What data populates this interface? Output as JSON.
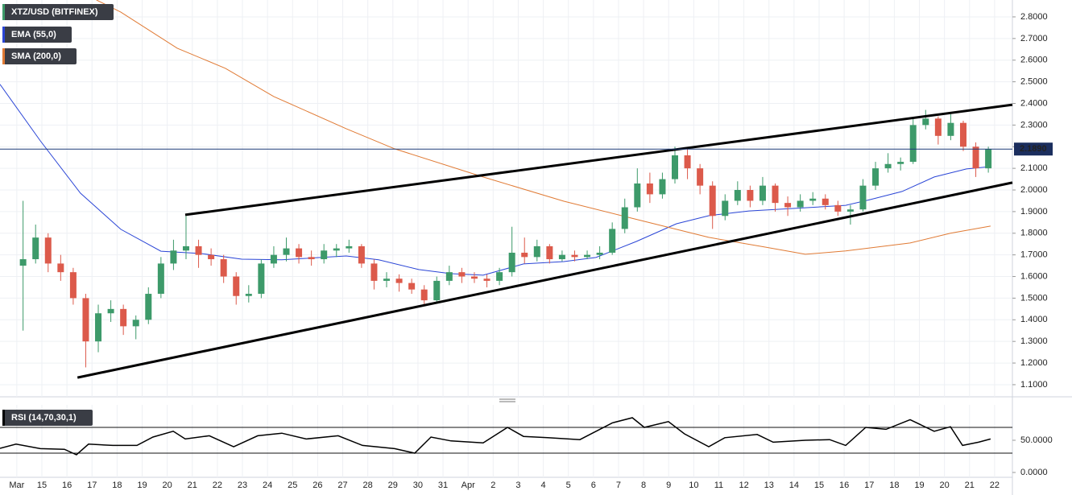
{
  "chart_data": {
    "type": "candlestick",
    "title": "XTZ/USD (BITFINEX)",
    "up_color": "#3d9a6a",
    "down_color": "#dc5a4b",
    "grid": true,
    "x": [
      14.25,
      14.75,
      15.25,
      15.75,
      16.25,
      16.75,
      17.25,
      17.75,
      18.25,
      18.75,
      19.25,
      19.75,
      20.25,
      20.75,
      21.25,
      21.75,
      22.25,
      22.75,
      23.25,
      23.75,
      24.25,
      24.75,
      25.25,
      25.75,
      26.25,
      26.75,
      27.25,
      27.75,
      28.25,
      28.75,
      29.25,
      29.75,
      30.25,
      30.75,
      31.25,
      31.75,
      32.25,
      32.75,
      33.25,
      33.75,
      34.25,
      34.75,
      35.25,
      35.75,
      36.25,
      36.75,
      37.25,
      37.75,
      38.25,
      38.75,
      39.25,
      39.75,
      40.25,
      40.75,
      41.25,
      41.75,
      42.25,
      42.75,
      43.25,
      43.75,
      44.25,
      44.75,
      45.25,
      45.75,
      46.25,
      46.75,
      47.25,
      47.75,
      48.25,
      48.75,
      49.25,
      49.75,
      50.25,
      50.75,
      51.25,
      51.75,
      52.25,
      52.75
    ],
    "open": [
      1.65,
      1.68,
      1.78,
      1.66,
      1.62,
      1.5,
      1.3,
      1.43,
      1.45,
      1.37,
      1.4,
      1.52,
      1.66,
      1.72,
      1.74,
      1.7,
      1.68,
      1.6,
      1.51,
      1.52,
      1.66,
      1.7,
      1.73,
      1.69,
      1.68,
      1.72,
      1.73,
      1.74,
      1.66,
      1.58,
      1.59,
      1.57,
      1.54,
      1.49,
      1.58,
      1.62,
      1.6,
      1.59,
      1.58,
      1.62,
      1.71,
      1.69,
      1.74,
      1.68,
      1.7,
      1.69,
      1.7,
      1.71,
      1.82,
      1.92,
      2.03,
      1.98,
      2.05,
      2.16,
      2.1,
      2.02,
      1.88,
      1.95,
      2.0,
      1.95,
      2.02,
      1.94,
      1.92,
      1.95,
      1.96,
      1.93,
      1.9,
      1.91,
      2.02,
      2.1,
      2.12,
      2.13,
      2.3,
      2.33,
      2.25,
      2.31,
      2.2,
      2.1
    ],
    "high": [
      1.95,
      1.84,
      1.8,
      1.7,
      1.64,
      1.52,
      1.47,
      1.49,
      1.47,
      1.42,
      1.55,
      1.69,
      1.77,
      1.88,
      1.77,
      1.73,
      1.7,
      1.62,
      1.56,
      1.68,
      1.74,
      1.78,
      1.75,
      1.72,
      1.75,
      1.75,
      1.77,
      1.75,
      1.68,
      1.62,
      1.61,
      1.59,
      1.56,
      1.6,
      1.65,
      1.64,
      1.62,
      1.61,
      1.64,
      1.83,
      1.78,
      1.77,
      1.75,
      1.72,
      1.72,
      1.72,
      1.74,
      1.85,
      1.96,
      2.1,
      2.08,
      2.08,
      2.2,
      2.19,
      2.12,
      2.04,
      1.98,
      2.04,
      2.02,
      2.06,
      2.03,
      1.97,
      1.98,
      1.99,
      1.98,
      1.95,
      1.93,
      2.05,
      2.13,
      2.17,
      2.15,
      2.33,
      2.37,
      2.34,
      2.35,
      2.32,
      2.22,
      2.2
    ],
    "low": [
      1.35,
      1.66,
      1.62,
      1.58,
      1.47,
      1.18,
      1.25,
      1.39,
      1.33,
      1.31,
      1.38,
      1.5,
      1.63,
      1.68,
      1.64,
      1.65,
      1.57,
      1.47,
      1.48,
      1.5,
      1.64,
      1.67,
      1.66,
      1.65,
      1.66,
      1.69,
      1.71,
      1.64,
      1.54,
      1.55,
      1.53,
      1.52,
      1.47,
      1.48,
      1.56,
      1.57,
      1.57,
      1.55,
      1.56,
      1.6,
      1.66,
      1.67,
      1.66,
      1.67,
      1.67,
      1.68,
      1.68,
      1.7,
      1.8,
      1.9,
      1.94,
      1.96,
      2.03,
      2.05,
      1.98,
      1.82,
      1.86,
      1.93,
      1.92,
      1.93,
      1.9,
      1.88,
      1.9,
      1.93,
      1.91,
      1.88,
      1.84,
      1.9,
      2.0,
      2.08,
      2.09,
      2.12,
      2.28,
      2.21,
      2.23,
      2.18,
      2.06,
      2.08
    ],
    "close": [
      1.68,
      1.78,
      1.66,
      1.62,
      1.5,
      1.3,
      1.43,
      1.45,
      1.37,
      1.4,
      1.52,
      1.66,
      1.72,
      1.74,
      1.7,
      1.68,
      1.6,
      1.51,
      1.52,
      1.66,
      1.7,
      1.73,
      1.69,
      1.68,
      1.72,
      1.73,
      1.74,
      1.66,
      1.58,
      1.59,
      1.57,
      1.54,
      1.49,
      1.58,
      1.62,
      1.6,
      1.59,
      1.58,
      1.62,
      1.71,
      1.69,
      1.74,
      1.68,
      1.7,
      1.69,
      1.7,
      1.71,
      1.82,
      1.92,
      2.03,
      1.98,
      2.05,
      2.16,
      2.1,
      2.02,
      1.88,
      1.95,
      2.0,
      1.95,
      2.02,
      1.94,
      1.92,
      1.95,
      1.96,
      1.93,
      1.9,
      1.91,
      2.02,
      2.1,
      2.12,
      2.13,
      2.3,
      2.33,
      2.25,
      2.31,
      2.2,
      2.1,
      2.189
    ],
    "lines": [
      {
        "name": "EMA (55,0)",
        "color": "#2a45d6",
        "x": [
          13.33,
          14.94,
          16.54,
          18.15,
          19.75,
          21.36,
          22.97,
          24.57,
          27.14,
          28.43,
          30.03,
          31.32,
          32.6,
          34.21,
          35.82,
          37.1,
          38.71,
          40.31,
          41.6,
          43.2,
          45.45,
          47.06,
          48.02,
          49.31,
          50.59,
          51.88,
          52.84
        ],
        "values": [
          2.488,
          2.227,
          1.985,
          1.818,
          1.717,
          1.706,
          1.68,
          1.677,
          1.695,
          1.677,
          1.632,
          1.613,
          1.606,
          1.658,
          1.669,
          1.688,
          1.762,
          1.844,
          1.881,
          1.903,
          1.918,
          1.929,
          1.955,
          1.993,
          2.06,
          2.097,
          2.108
        ]
      },
      {
        "name": "SMA (200,0)",
        "color": "#e07a34",
        "x": [
          17.18,
          18.15,
          20.4,
          22.32,
          24.25,
          27.14,
          29.07,
          32.6,
          35.82,
          39.03,
          41.6,
          43.85,
          45.45,
          47.06,
          49.63,
          51.24,
          52.84
        ],
        "values": [
          2.878,
          2.822,
          2.655,
          2.562,
          2.432,
          2.283,
          2.19,
          2.06,
          1.948,
          1.855,
          1.781,
          1.736,
          1.703,
          1.718,
          1.755,
          1.8,
          1.833
        ]
      }
    ],
    "trendlines": [
      {
        "x": [
          16.42,
          53.71
        ],
        "y": [
          1.133,
          2.034
        ]
      },
      {
        "x": [
          20.72,
          53.71
        ],
        "y": [
          1.885,
          2.394
        ]
      }
    ],
    "last_price": {
      "value": 2.189,
      "label": "2.1890"
    },
    "xlim": [
      13.33,
      53.71
    ],
    "ylim": [
      1.044,
      2.878
    ],
    "yticks": [
      {
        "value": 1.1,
        "label": "1.1000"
      },
      {
        "value": 1.2,
        "label": "1.2000"
      },
      {
        "value": 1.3,
        "label": "1.3000"
      },
      {
        "value": 1.4,
        "label": "1.4000"
      },
      {
        "value": 1.5,
        "label": "1.5000"
      },
      {
        "value": 1.6,
        "label": "1.6000"
      },
      {
        "value": 1.7,
        "label": "1.7000"
      },
      {
        "value": 1.8,
        "label": "1.8000"
      },
      {
        "value": 1.9,
        "label": "1.9000"
      },
      {
        "value": 2.0,
        "label": "2.0000"
      },
      {
        "value": 2.1,
        "label": "2.1000"
      },
      {
        "value": 2.2,
        "label": "2.2000"
      },
      {
        "value": 2.3,
        "label": "2.3000"
      },
      {
        "value": 2.4,
        "label": "2.4000"
      },
      {
        "value": 2.5,
        "label": "2.5000"
      },
      {
        "value": 2.6,
        "label": "2.6000"
      },
      {
        "value": 2.7,
        "label": "2.7000"
      },
      {
        "value": 2.8,
        "label": "2.8000"
      }
    ],
    "xticks": [
      {
        "value": 14,
        "label": "Mar"
      },
      15,
      16,
      17,
      18,
      19,
      20,
      21,
      22,
      23,
      24,
      25,
      26,
      27,
      28,
      29,
      30,
      31,
      {
        "value": 32,
        "label": "Apr"
      },
      {
        "value": 33,
        "label": "2"
      },
      {
        "value": 34,
        "label": "3"
      },
      {
        "value": 35,
        "label": "4"
      },
      {
        "value": 36,
        "label": "5"
      },
      {
        "value": 37,
        "label": "6"
      },
      {
        "value": 38,
        "label": "7"
      },
      {
        "value": 39,
        "label": "8"
      },
      {
        "value": 40,
        "label": "9"
      },
      {
        "value": 41,
        "label": "10"
      },
      {
        "value": 42,
        "label": "11"
      },
      {
        "value": 43,
        "label": "12"
      },
      {
        "value": 44,
        "label": "13"
      },
      {
        "value": 45,
        "label": "14"
      },
      {
        "value": 46,
        "label": "15"
      },
      {
        "value": 47,
        "label": "16"
      },
      {
        "value": 48,
        "label": "17"
      },
      {
        "value": 49,
        "label": "18"
      },
      {
        "value": 50,
        "label": "19"
      },
      {
        "value": 51,
        "label": "20"
      },
      {
        "value": 52,
        "label": "21"
      },
      {
        "value": 53,
        "label": "22"
      }
    ],
    "rsi": {
      "name": "RSI (14,70,30,1)",
      "color": "#000000",
      "x": [
        13.33,
        13.97,
        14.94,
        15.9,
        16.38,
        16.86,
        17.83,
        18.79,
        19.43,
        20.24,
        20.72,
        21.68,
        22.65,
        23.61,
        24.57,
        25.54,
        26.82,
        27.79,
        29.07,
        29.87,
        30.52,
        31.32,
        32.6,
        33.57,
        34.21,
        35.17,
        36.46,
        37.75,
        38.55,
        39.03,
        39.99,
        40.63,
        41.6,
        42.24,
        43.53,
        44.17,
        45.45,
        46.42,
        47.06,
        47.86,
        48.67,
        49.63,
        50.59,
        51.24,
        51.72,
        52.36,
        52.84
      ],
      "values": [
        37.5,
        44,
        37,
        36,
        27.5,
        44,
        42,
        42,
        55,
        64,
        52,
        57,
        40,
        57,
        61,
        52,
        57,
        42,
        37,
        30,
        55,
        49,
        46,
        70,
        56,
        54,
        51,
        77,
        85,
        70,
        79,
        60,
        40,
        54,
        59,
        47,
        50,
        51,
        42,
        70,
        67,
        82,
        64,
        71,
        42,
        47,
        52
      ],
      "ylim": [
        -7.5,
        105
      ],
      "yticks": [
        {
          "value": 0,
          "label": "0.0000"
        },
        {
          "value": 50,
          "label": "50.0000"
        }
      ],
      "levels": [
        70,
        30
      ]
    }
  }
}
